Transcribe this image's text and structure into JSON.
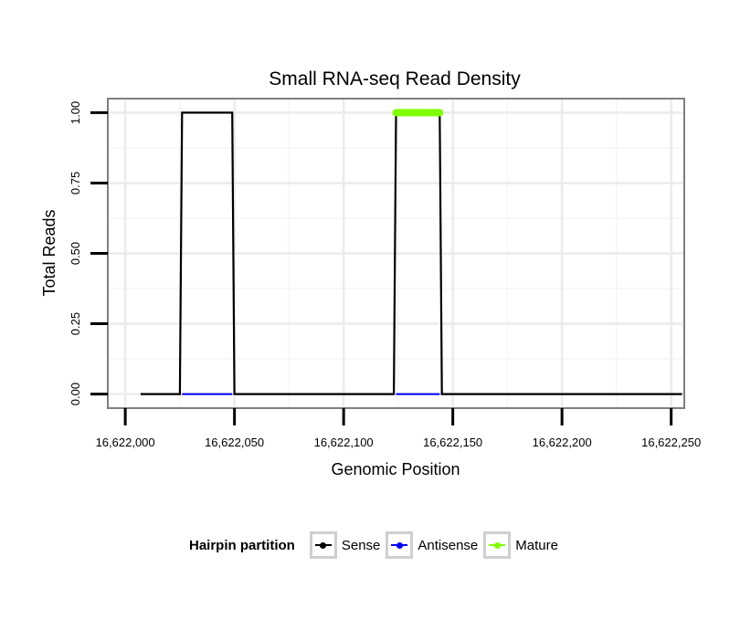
{
  "chart_data": {
    "type": "line",
    "title": "Small RNA-seq Read Density",
    "xlabel": "Genomic Position",
    "ylabel": "Total Reads",
    "xlim": [
      16621992,
      16622256
    ],
    "ylim": [
      -0.05,
      1.05
    ],
    "x_ticks": [
      16622000,
      16622050,
      16622100,
      16622150,
      16622200,
      16622250
    ],
    "x_tick_labels": [
      "16,622,000",
      "16,622,050",
      "16,622,100",
      "16,622,150",
      "16,622,200",
      "16,622,250"
    ],
    "y_ticks": [
      0,
      0.25,
      0.5,
      0.75,
      1.0
    ],
    "y_tick_labels": [
      "0.00",
      "0.25",
      "0.50",
      "0.75",
      "1.00"
    ],
    "grid": true,
    "legend": {
      "title": "Hairpin partition",
      "placement": "bottom",
      "entries": [
        "Sense",
        "Antisense",
        "Mature"
      ]
    },
    "series": [
      {
        "name": "Sense",
        "color": "#000000",
        "x": [
          16622007,
          16622025,
          16622026,
          16622049,
          16622050,
          16622123,
          16622124,
          16622144,
          16622145,
          16622255
        ],
        "y": [
          0,
          0,
          1,
          1,
          0,
          0,
          1,
          1,
          0,
          0
        ]
      },
      {
        "name": "Antisense",
        "color": "#0000ff",
        "x": [
          16622026,
          16622049,
          16622124,
          16622144
        ],
        "y": [
          0,
          0,
          0,
          0
        ],
        "segments": [
          [
            0,
            1
          ],
          [
            2,
            3
          ]
        ]
      },
      {
        "name": "Mature",
        "color": "#7fff00",
        "x": [
          16622124,
          16622144
        ],
        "y": [
          1,
          1
        ]
      }
    ]
  }
}
